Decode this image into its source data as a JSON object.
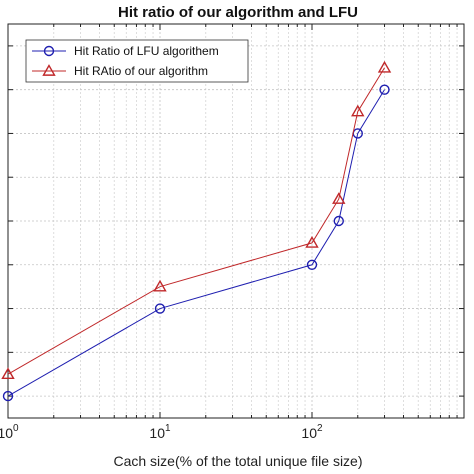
{
  "chart_data": {
    "type": "line",
    "title": "Hit ratio of our algorithm and LFU",
    "xlabel": "Cach size(% of the total unique file size)",
    "ylabel": "",
    "xscale": "log",
    "xlim": [
      1,
      1000
    ],
    "ylim": [
      0.05,
      0.95
    ],
    "x_tick_labels": [
      {
        "base": "10",
        "exp": "0",
        "value": 1
      },
      {
        "base": "10",
        "exp": "1",
        "value": 10
      },
      {
        "base": "10",
        "exp": "2",
        "value": 100
      }
    ],
    "y_ticks": [
      0.1,
      0.2,
      0.3,
      0.4,
      0.5,
      0.6,
      0.7,
      0.8,
      0.9
    ],
    "grid": true,
    "legend_position": "top-left",
    "x": [
      1,
      10,
      100,
      150,
      200,
      300
    ],
    "series": [
      {
        "name": "Hit Ratio of LFU algorithem",
        "color": "#1f1fb0",
        "marker": "circle",
        "values": [
          0.1,
          0.3,
          0.4,
          0.5,
          0.7,
          0.8
        ]
      },
      {
        "name": "Hit RAtio of our algorithm",
        "color": "#c0282a",
        "marker": "triangle",
        "values": [
          0.15,
          0.35,
          0.45,
          0.55,
          0.75,
          0.85
        ]
      }
    ]
  }
}
